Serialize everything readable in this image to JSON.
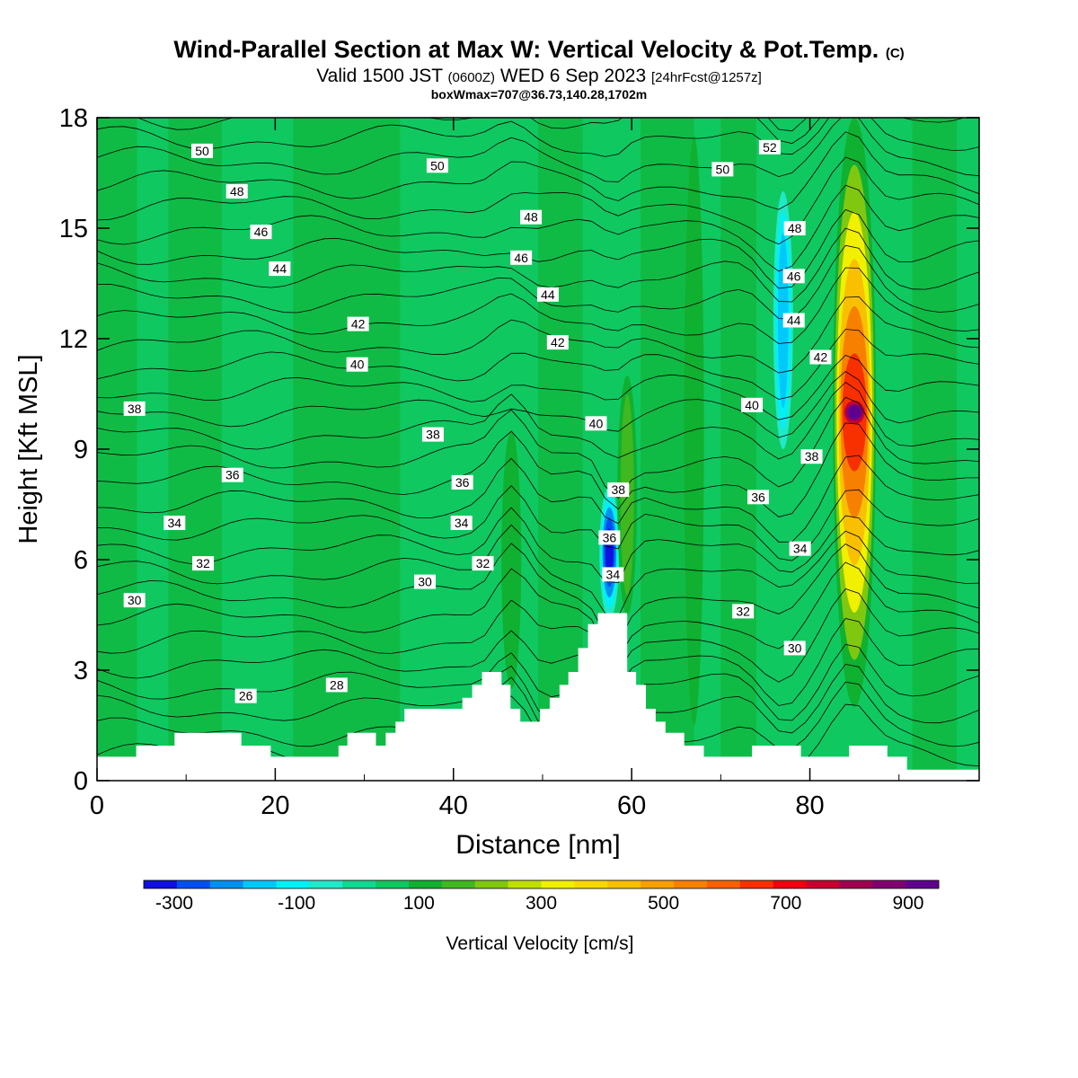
{
  "title": {
    "main": "Wind-Parallel Section at Max W: Vertical Velocity & Pot.Temp.",
    "copyright": "(C)",
    "valid_a": "Valid 1500 JST",
    "valid_utc": "(0600Z)",
    "valid_b": "WED 6 Sep 2023",
    "forecast": "[24hrFcst@1257z]",
    "box": "boxWmax=707@36.73,140.28,1702m"
  },
  "chart_data": {
    "type": "heatmap",
    "xlabel": "Distance [nm]",
    "ylabel": "Height [Kft MSL]",
    "xlim": [
      0,
      99
    ],
    "ylim": [
      0,
      18
    ],
    "xticks": [
      0,
      20,
      40,
      60,
      80
    ],
    "yticks": [
      0,
      3,
      6,
      9,
      12,
      15,
      18
    ],
    "colorbar": {
      "label": "Vertical Velocity [cm/s]",
      "range": [
        -350,
        950
      ],
      "step": 50,
      "tick_values": [
        -300,
        -100,
        100,
        300,
        500,
        700,
        900
      ],
      "colors": [
        "#1010e0",
        "#0050f0",
        "#0090f0",
        "#00c8f8",
        "#00f0f8",
        "#20e8c8",
        "#10d890",
        "#10c860",
        "#10b030",
        "#40b820",
        "#80c810",
        "#c0e000",
        "#f0f000",
        "#f8d800",
        "#f8c000",
        "#f8a000",
        "#f88000",
        "#f86000",
        "#f83000",
        "#f00010",
        "#c80030",
        "#a00050",
        "#800070",
        "#600090"
      ]
    },
    "features": [
      {
        "x": 46.5,
        "ymin": 2.5,
        "ymax": 9.5,
        "w": 85
      },
      {
        "x": 57.5,
        "ymin": 4.4,
        "ymax": 8,
        "w": -350
      },
      {
        "x": 59.5,
        "ymin": 4.5,
        "ymax": 11,
        "w": 110
      },
      {
        "x": 67,
        "ymin": 1.5,
        "ymax": 17.5,
        "w": 60
      },
      {
        "x": 77,
        "ymin": 9,
        "ymax": 16,
        "w": -170
      },
      {
        "x": 85,
        "ymin": 2,
        "ymax": 18,
        "w": 900
      }
    ],
    "theta_labels": [
      {
        "value": "50",
        "x": 11.8,
        "y": 17.1
      },
      {
        "value": "48",
        "x": 15.7,
        "y": 16.0
      },
      {
        "value": "46",
        "x": 18.4,
        "y": 14.9
      },
      {
        "value": "44",
        "x": 20.5,
        "y": 13.9
      },
      {
        "value": "42",
        "x": 29.3,
        "y": 12.4
      },
      {
        "value": "40",
        "x": 29.2,
        "y": 11.3
      },
      {
        "value": "38",
        "x": 4.2,
        "y": 10.1
      },
      {
        "value": "36",
        "x": 15.2,
        "y": 8.3
      },
      {
        "value": "34",
        "x": 8.7,
        "y": 7.0
      },
      {
        "value": "32",
        "x": 11.9,
        "y": 5.9
      },
      {
        "value": "30",
        "x": 4.2,
        "y": 4.9
      },
      {
        "value": "26",
        "x": 16.7,
        "y": 2.3
      },
      {
        "value": "28",
        "x": 26.9,
        "y": 2.6
      },
      {
        "value": "50",
        "x": 38.2,
        "y": 16.7
      },
      {
        "value": "48",
        "x": 48.7,
        "y": 15.3
      },
      {
        "value": "46",
        "x": 47.6,
        "y": 14.2
      },
      {
        "value": "44",
        "x": 50.6,
        "y": 13.2
      },
      {
        "value": "42",
        "x": 51.7,
        "y": 11.9
      },
      {
        "value": "40",
        "x": 56.0,
        "y": 9.7
      },
      {
        "value": "38",
        "x": 37.7,
        "y": 9.4
      },
      {
        "value": "36",
        "x": 41.0,
        "y": 8.1
      },
      {
        "value": "34",
        "x": 40.9,
        "y": 7.0
      },
      {
        "value": "32",
        "x": 43.3,
        "y": 5.9
      },
      {
        "value": "30",
        "x": 36.8,
        "y": 5.4
      },
      {
        "value": "38",
        "x": 58.5,
        "y": 7.9
      },
      {
        "value": "36",
        "x": 57.5,
        "y": 6.6
      },
      {
        "value": "34",
        "x": 57.9,
        "y": 5.6
      },
      {
        "value": "52",
        "x": 75.5,
        "y": 17.2
      },
      {
        "value": "50",
        "x": 70.2,
        "y": 16.6
      },
      {
        "value": "48",
        "x": 78.3,
        "y": 15.0
      },
      {
        "value": "46",
        "x": 78.2,
        "y": 13.7
      },
      {
        "value": "44",
        "x": 78.2,
        "y": 12.5
      },
      {
        "value": "42",
        "x": 81.2,
        "y": 11.5
      },
      {
        "value": "40",
        "x": 73.5,
        "y": 10.2
      },
      {
        "value": "38",
        "x": 80.2,
        "y": 8.8
      },
      {
        "value": "36",
        "x": 74.2,
        "y": 7.7
      },
      {
        "value": "34",
        "x": 78.9,
        "y": 6.3
      },
      {
        "value": "32",
        "x": 72.5,
        "y": 4.6
      },
      {
        "value": "30",
        "x": 78.3,
        "y": 3.6
      }
    ],
    "terrain": [
      [
        0,
        0.65
      ],
      [
        4.4,
        0.65
      ],
      [
        4.4,
        0.95
      ],
      [
        8.7,
        0.95
      ],
      [
        8.7,
        1.3
      ],
      [
        16.2,
        1.3
      ],
      [
        16.2,
        0.95
      ],
      [
        19.5,
        0.95
      ],
      [
        19.5,
        0.65
      ],
      [
        27.1,
        0.65
      ],
      [
        27.1,
        0.95
      ],
      [
        28.1,
        0.95
      ],
      [
        28.1,
        1.3
      ],
      [
        31.3,
        1.3
      ],
      [
        31.3,
        0.95
      ],
      [
        32.4,
        0.95
      ],
      [
        32.4,
        1.3
      ],
      [
        33.5,
        1.3
      ],
      [
        33.5,
        1.6
      ],
      [
        34.5,
        1.6
      ],
      [
        34.5,
        1.95
      ],
      [
        41.0,
        1.95
      ],
      [
        41.0,
        2.25
      ],
      [
        42.1,
        2.25
      ],
      [
        42.1,
        2.6
      ],
      [
        43.2,
        2.6
      ],
      [
        43.2,
        2.95
      ],
      [
        45.4,
        2.95
      ],
      [
        45.4,
        2.6
      ],
      [
        46.4,
        2.6
      ],
      [
        46.4,
        1.95
      ],
      [
        47.5,
        1.95
      ],
      [
        47.5,
        1.6
      ],
      [
        49.7,
        1.6
      ],
      [
        49.7,
        1.95
      ],
      [
        50.8,
        1.95
      ],
      [
        50.8,
        2.25
      ],
      [
        51.9,
        2.25
      ],
      [
        51.9,
        2.6
      ],
      [
        52.9,
        2.6
      ],
      [
        52.9,
        2.95
      ],
      [
        54.0,
        2.95
      ],
      [
        54.0,
        3.6
      ],
      [
        55.1,
        3.6
      ],
      [
        55.1,
        4.25
      ],
      [
        56.2,
        4.25
      ],
      [
        56.2,
        4.55
      ],
      [
        59.5,
        4.55
      ],
      [
        59.5,
        2.95
      ],
      [
        60.5,
        2.95
      ],
      [
        60.5,
        2.6
      ],
      [
        61.6,
        2.6
      ],
      [
        61.6,
        1.95
      ],
      [
        62.7,
        1.95
      ],
      [
        62.7,
        1.6
      ],
      [
        63.8,
        1.6
      ],
      [
        63.8,
        1.3
      ],
      [
        65.9,
        1.3
      ],
      [
        65.9,
        0.95
      ],
      [
        68.1,
        0.95
      ],
      [
        68.1,
        0.65
      ],
      [
        73.5,
        0.65
      ],
      [
        73.5,
        0.95
      ],
      [
        79.0,
        0.95
      ],
      [
        79.0,
        0.65
      ],
      [
        84.4,
        0.65
      ],
      [
        84.4,
        0.95
      ],
      [
        88.7,
        0.95
      ],
      [
        88.7,
        0.65
      ],
      [
        90.9,
        0.65
      ],
      [
        90.9,
        0.3
      ],
      [
        99,
        0.3
      ]
    ]
  }
}
